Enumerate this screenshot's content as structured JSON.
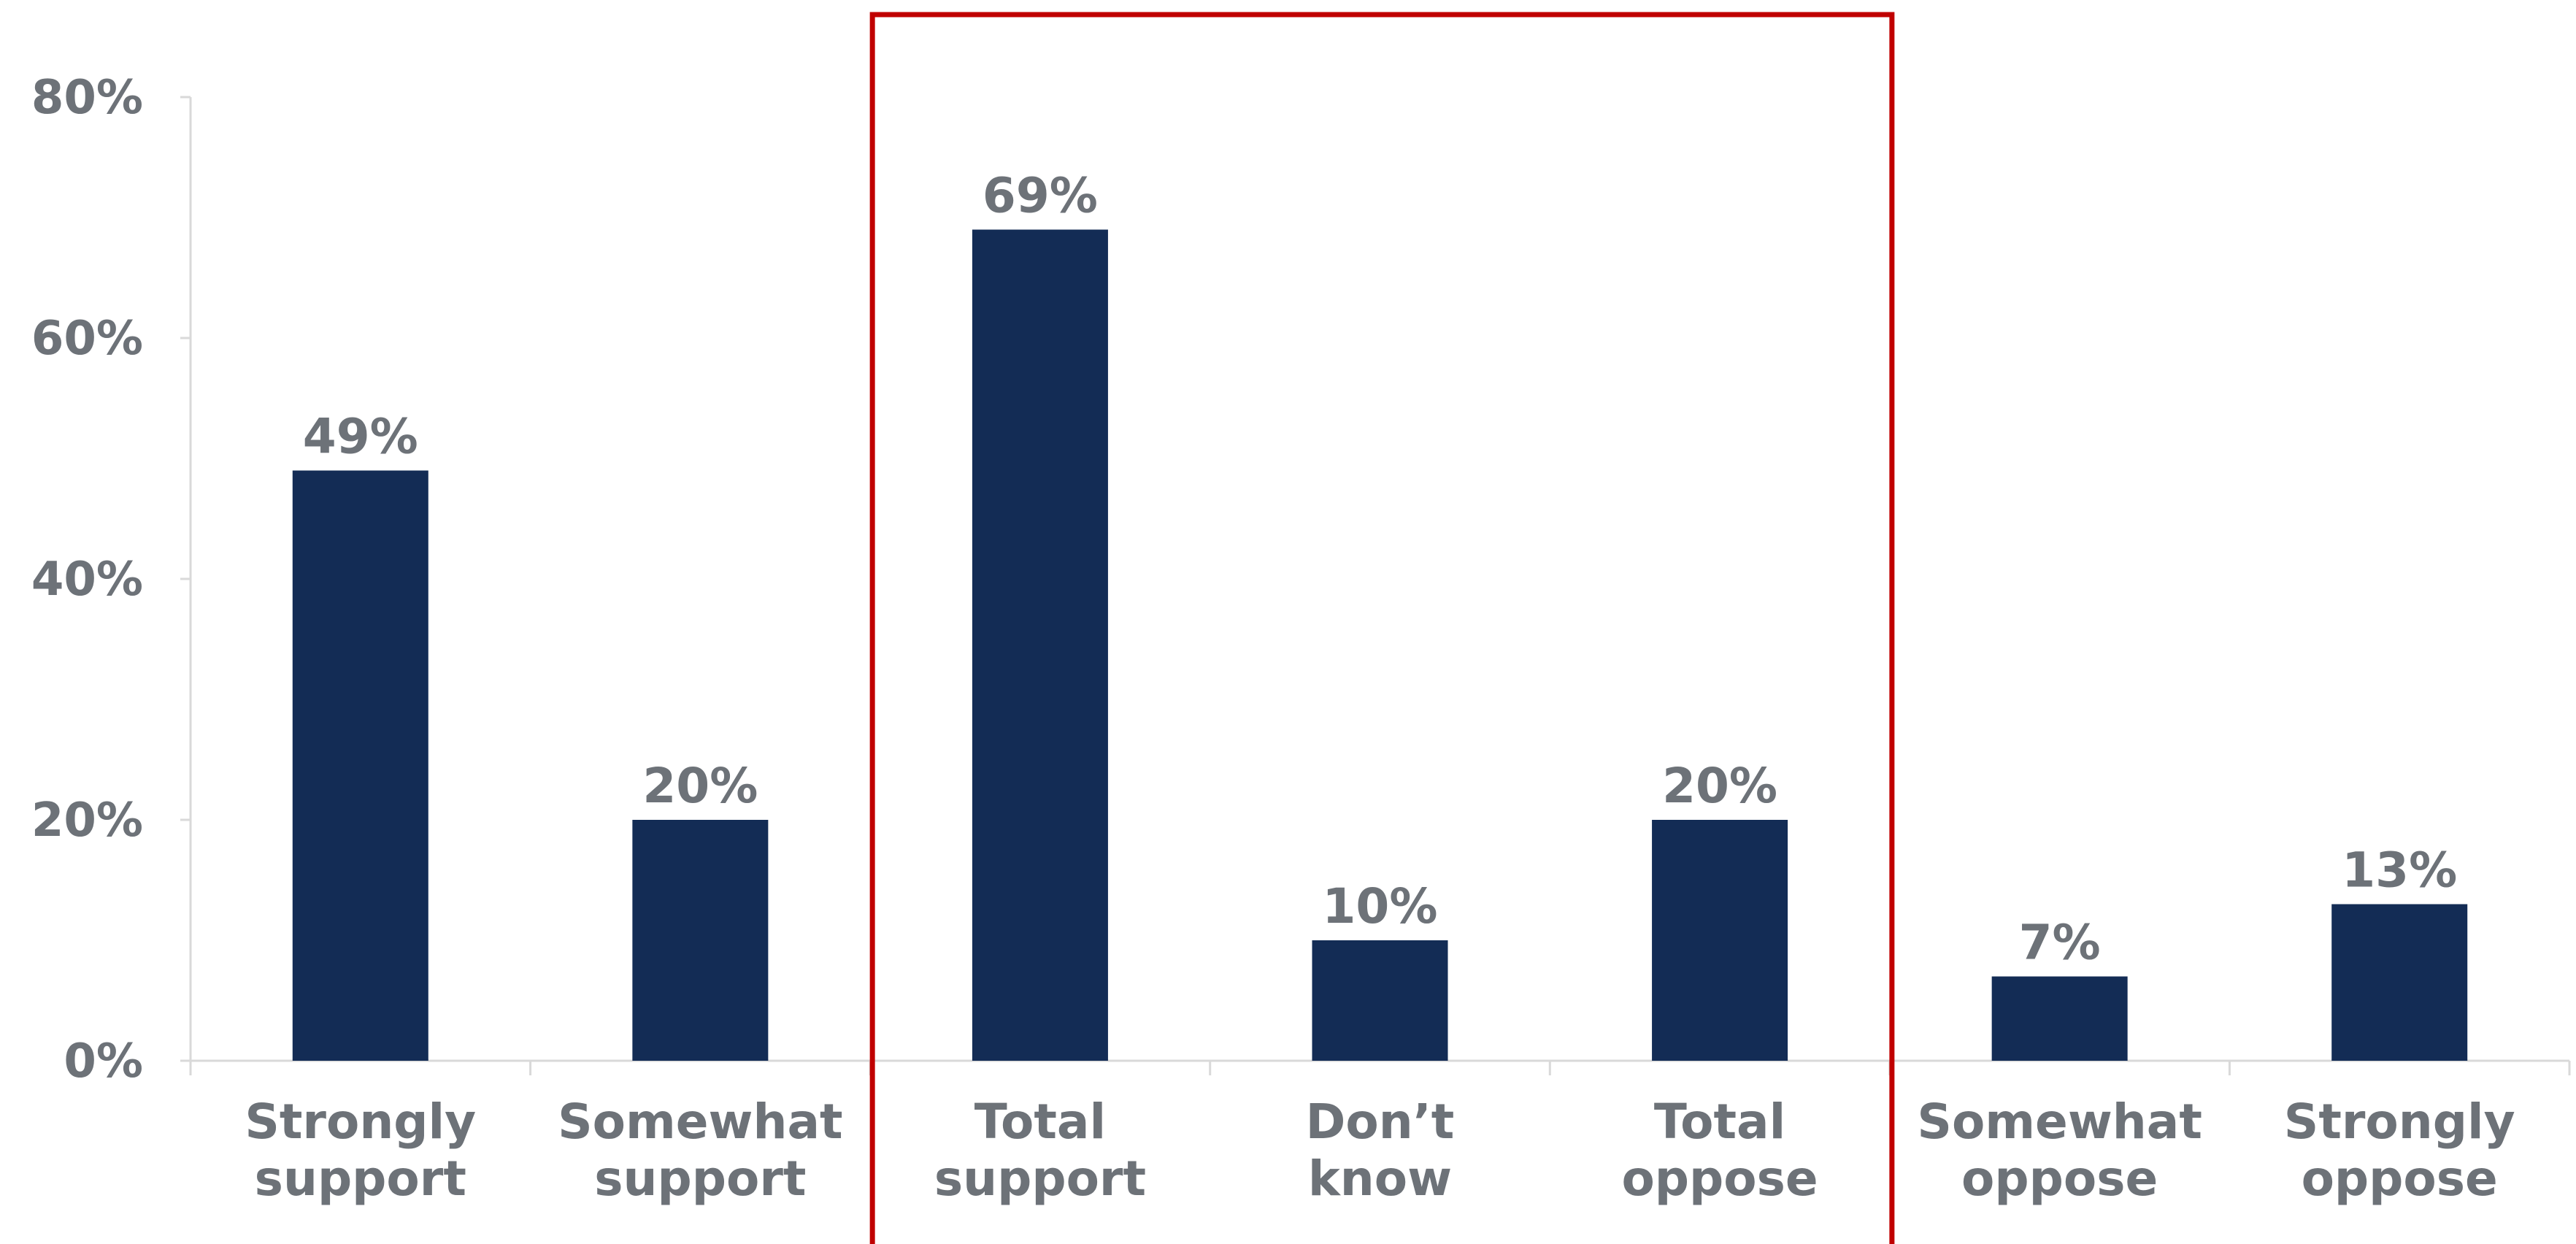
{
  "chart_data": {
    "type": "bar",
    "categories": [
      [
        "Strongly",
        "support"
      ],
      [
        "Somewhat",
        "support"
      ],
      [
        "Total",
        "support"
      ],
      [
        "Don’t",
        "know"
      ],
      [
        "Total",
        "oppose"
      ],
      [
        "Somewhat",
        "oppose"
      ],
      [
        "Strongly",
        "oppose"
      ]
    ],
    "values": [
      49,
      20,
      69,
      10,
      20,
      7,
      13
    ],
    "data_labels": [
      "49%",
      "20%",
      "69%",
      "10%",
      "20%",
      "7%",
      "13%"
    ],
    "yticks": [
      {
        "value": 0,
        "label": "0%"
      },
      {
        "value": 20,
        "label": "20%"
      },
      {
        "value": 40,
        "label": "40%"
      },
      {
        "value": 60,
        "label": "60%"
      },
      {
        "value": 80,
        "label": "80%"
      }
    ],
    "ylim": [
      0,
      80
    ],
    "title": "",
    "xlabel": "",
    "ylabel": "",
    "grid": false,
    "highlight_range": {
      "from_category": 2,
      "to_category": 4
    },
    "colors": {
      "bar": "#132c55",
      "text": "#6d7278",
      "axis": "#d9d9d9",
      "highlight": "#c00000"
    }
  }
}
